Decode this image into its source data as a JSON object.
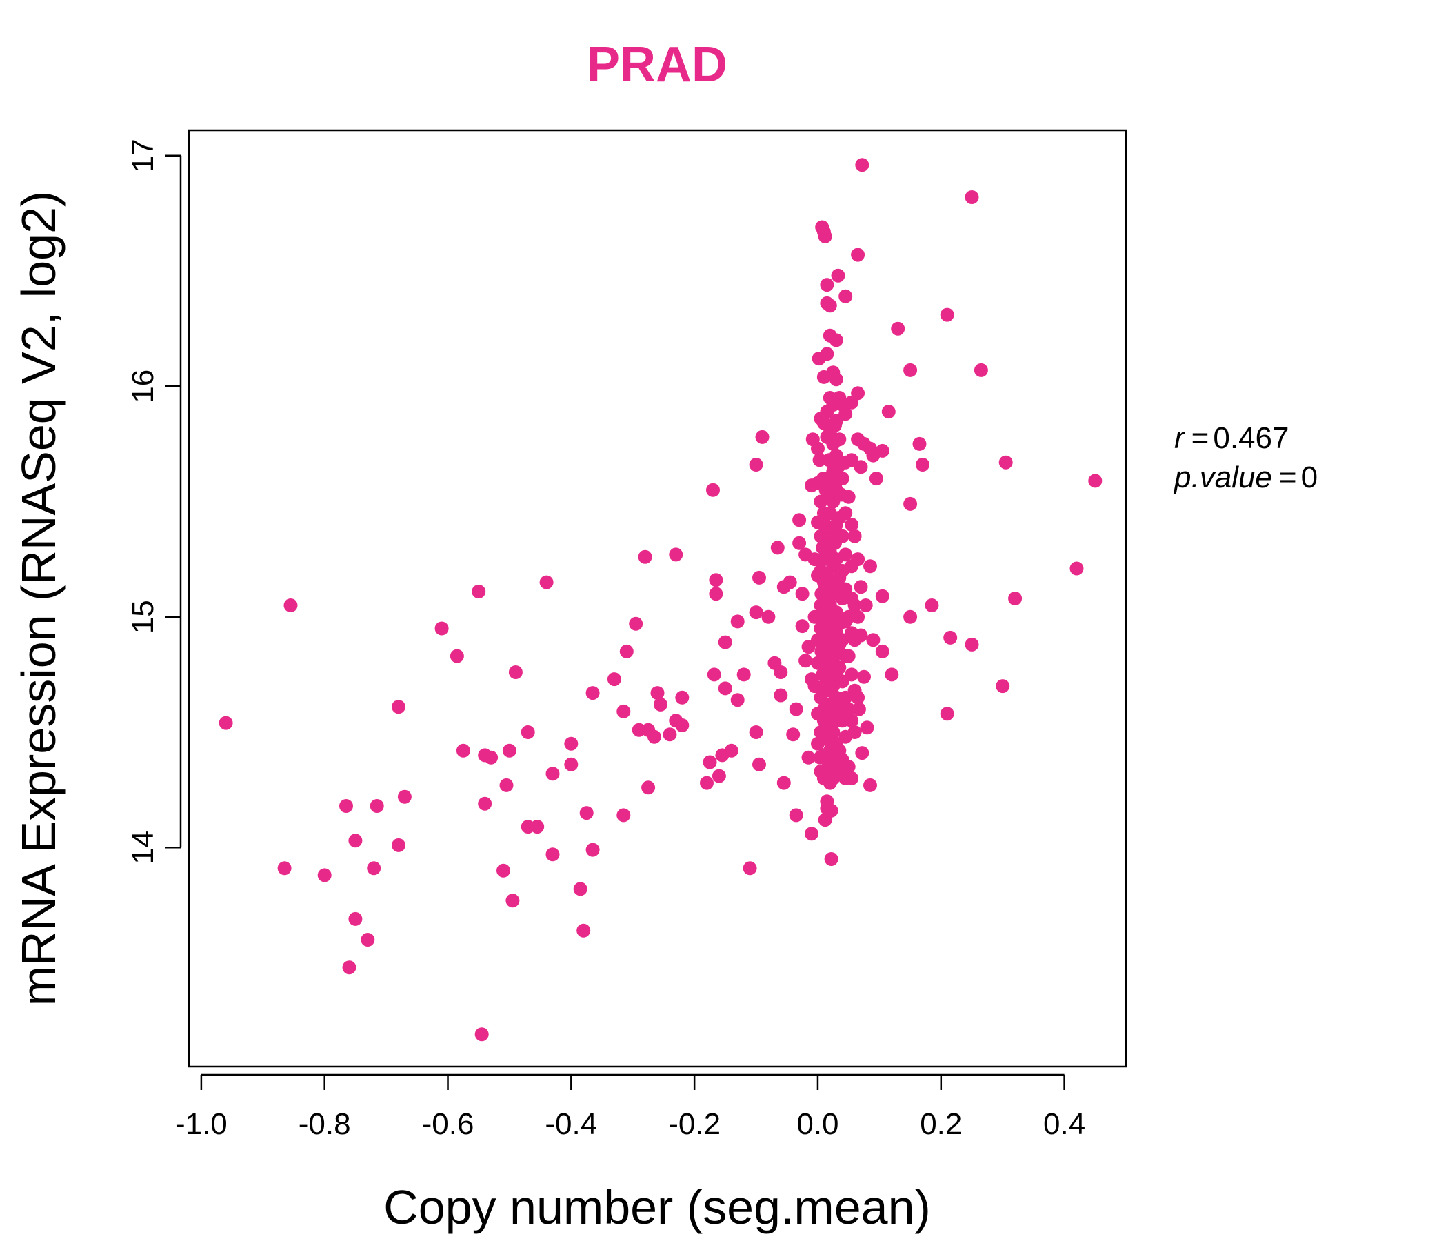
{
  "chart_data": {
    "type": "scatter",
    "title": "PRAD",
    "xlabel": "Copy number (seg.mean)",
    "ylabel": "mRNA Expression (RNASeq V2, log2)",
    "xlim": [
      -1.02,
      0.5
    ],
    "ylim": [
      13.05,
      17.11
    ],
    "x_ticks": [
      -1.0,
      -0.8,
      -0.6,
      -0.4,
      -0.2,
      0.0,
      0.2,
      0.4
    ],
    "x_tick_labels": [
      "-1.0",
      "-0.8",
      "-0.6",
      "-0.4",
      "-0.2",
      "0.0",
      "0.2",
      "0.4"
    ],
    "y_ticks": [
      14,
      15,
      16,
      17
    ],
    "y_tick_labels": [
      "14",
      "15",
      "16",
      "17"
    ],
    "grid": false,
    "legend": "none",
    "color": "#E7298A",
    "stats": {
      "r_label": "r",
      "r_value": "0.467",
      "p_label": "p.value",
      "p_value": "0"
    },
    "points": [
      [
        -0.96,
        14.54
      ],
      [
        -0.865,
        13.91
      ],
      [
        -0.855,
        15.05
      ],
      [
        -0.8,
        13.88
      ],
      [
        -0.765,
        14.18
      ],
      [
        -0.76,
        13.48
      ],
      [
        -0.75,
        14.03
      ],
      [
        -0.75,
        13.69
      ],
      [
        -0.73,
        13.6
      ],
      [
        -0.72,
        13.91
      ],
      [
        -0.715,
        14.18
      ],
      [
        -0.68,
        14.61
      ],
      [
        -0.68,
        14.01
      ],
      [
        -0.67,
        14.22
      ],
      [
        -0.61,
        14.95
      ],
      [
        -0.585,
        14.83
      ],
      [
        -0.575,
        14.42
      ],
      [
        -0.55,
        15.11
      ],
      [
        -0.545,
        13.19
      ],
      [
        -0.54,
        14.4
      ],
      [
        -0.54,
        14.19
      ],
      [
        -0.53,
        14.39
      ],
      [
        -0.51,
        13.9
      ],
      [
        -0.505,
        14.27
      ],
      [
        -0.5,
        14.42
      ],
      [
        -0.495,
        13.77
      ],
      [
        -0.49,
        14.76
      ],
      [
        -0.47,
        14.5
      ],
      [
        -0.47,
        14.09
      ],
      [
        -0.455,
        14.09
      ],
      [
        -0.44,
        15.15
      ],
      [
        -0.43,
        14.32
      ],
      [
        -0.43,
        13.97
      ],
      [
        -0.4,
        14.45
      ],
      [
        -0.4,
        14.36
      ],
      [
        -0.385,
        13.82
      ],
      [
        -0.38,
        13.64
      ],
      [
        -0.375,
        14.15
      ],
      [
        -0.365,
        14.67
      ],
      [
        -0.365,
        13.99
      ],
      [
        -0.33,
        14.73
      ],
      [
        -0.315,
        14.59
      ],
      [
        -0.315,
        14.14
      ],
      [
        -0.31,
        14.85
      ],
      [
        -0.295,
        14.97
      ],
      [
        -0.29,
        14.51
      ],
      [
        -0.28,
        15.26
      ],
      [
        -0.275,
        14.26
      ],
      [
        -0.275,
        14.51
      ],
      [
        -0.265,
        14.48
      ],
      [
        -0.26,
        14.67
      ],
      [
        -0.255,
        14.62
      ],
      [
        -0.24,
        14.49
      ],
      [
        -0.23,
        15.27
      ],
      [
        -0.23,
        14.55
      ],
      [
        -0.22,
        14.65
      ],
      [
        -0.22,
        14.53
      ],
      [
        -0.18,
        14.28
      ],
      [
        -0.175,
        14.37
      ],
      [
        -0.17,
        15.55
      ],
      [
        -0.168,
        14.75
      ],
      [
        -0.165,
        15.16
      ],
      [
        -0.165,
        15.1
      ],
      [
        -0.16,
        14.31
      ],
      [
        -0.155,
        14.4
      ],
      [
        -0.15,
        14.89
      ],
      [
        -0.15,
        14.69
      ],
      [
        -0.14,
        14.42
      ],
      [
        -0.13,
        14.64
      ],
      [
        -0.13,
        14.98
      ],
      [
        -0.12,
        14.75
      ],
      [
        -0.11,
        13.91
      ],
      [
        -0.1,
        14.5
      ],
      [
        -0.1,
        15.02
      ],
      [
        -0.1,
        15.66
      ],
      [
        -0.095,
        15.17
      ],
      [
        -0.095,
        14.36
      ],
      [
        -0.09,
        15.78
      ],
      [
        -0.08,
        15.0
      ],
      [
        -0.07,
        14.8
      ],
      [
        -0.065,
        15.3
      ],
      [
        -0.06,
        14.76
      ],
      [
        -0.06,
        14.66
      ],
      [
        -0.055,
        15.13
      ],
      [
        -0.055,
        14.28
      ],
      [
        -0.045,
        15.15
      ],
      [
        -0.04,
        14.49
      ],
      [
        -0.035,
        14.14
      ],
      [
        -0.035,
        14.6
      ],
      [
        -0.03,
        15.42
      ],
      [
        -0.03,
        15.32
      ],
      [
        -0.025,
        15.1
      ],
      [
        -0.025,
        14.96
      ],
      [
        -0.02,
        14.81
      ],
      [
        -0.02,
        15.27
      ],
      [
        -0.015,
        14.39
      ],
      [
        -0.015,
        14.87
      ],
      [
        -0.01,
        15.57
      ],
      [
        -0.01,
        14.73
      ],
      [
        -0.01,
        14.06
      ],
      [
        -0.008,
        15.77
      ],
      [
        -0.005,
        15.25
      ],
      [
        -0.005,
        15.0
      ],
      [
        -0.005,
        14.7
      ],
      [
        0.0,
        15.58
      ],
      [
        0.0,
        15.41
      ],
      [
        0.0,
        15.18
      ],
      [
        0.0,
        15.0
      ],
      [
        0.0,
        14.9
      ],
      [
        0.0,
        14.8
      ],
      [
        0.0,
        14.58
      ],
      [
        0.0,
        14.45
      ],
      [
        0.0,
        15.73
      ],
      [
        0.002,
        16.12
      ],
      [
        0.003,
        15.68
      ],
      [
        0.004,
        14.39
      ],
      [
        0.005,
        15.86
      ],
      [
        0.005,
        15.5
      ],
      [
        0.005,
        15.35
      ],
      [
        0.005,
        15.2
      ],
      [
        0.005,
        15.05
      ],
      [
        0.005,
        14.95
      ],
      [
        0.005,
        14.65
      ],
      [
        0.005,
        14.5
      ],
      [
        0.005,
        14.33
      ],
      [
        0.006,
        14.85
      ],
      [
        0.006,
        15.1
      ],
      [
        0.007,
        16.69
      ],
      [
        0.008,
        15.3
      ],
      [
        0.008,
        14.75
      ],
      [
        0.009,
        15.6
      ],
      [
        0.01,
        16.67
      ],
      [
        0.01,
        16.04
      ],
      [
        0.01,
        15.84
      ],
      [
        0.01,
        15.45
      ],
      [
        0.01,
        15.25
      ],
      [
        0.01,
        15.15
      ],
      [
        0.01,
        15.0
      ],
      [
        0.01,
        14.9
      ],
      [
        0.01,
        14.8
      ],
      [
        0.01,
        14.7
      ],
      [
        0.01,
        14.6
      ],
      [
        0.01,
        14.55
      ],
      [
        0.01,
        14.4
      ],
      [
        0.01,
        14.3
      ],
      [
        0.012,
        16.65
      ],
      [
        0.012,
        14.12
      ],
      [
        0.012,
        15.4
      ],
      [
        0.013,
        15.55
      ],
      [
        0.014,
        15.12
      ],
      [
        0.015,
        16.36
      ],
      [
        0.015,
        16.44
      ],
      [
        0.015,
        16.14
      ],
      [
        0.015,
        15.89
      ],
      [
        0.015,
        15.78
      ],
      [
        0.015,
        15.52
      ],
      [
        0.015,
        15.32
      ],
      [
        0.015,
        15.18
      ],
      [
        0.015,
        15.02
      ],
      [
        0.015,
        14.92
      ],
      [
        0.015,
        14.82
      ],
      [
        0.015,
        14.72
      ],
      [
        0.015,
        14.62
      ],
      [
        0.015,
        14.47
      ],
      [
        0.015,
        14.38
      ],
      [
        0.015,
        14.2
      ],
      [
        0.015,
        14.17
      ],
      [
        0.018,
        15.68
      ],
      [
        0.018,
        15.08
      ],
      [
        0.018,
        14.98
      ],
      [
        0.02,
        16.35
      ],
      [
        0.02,
        16.22
      ],
      [
        0.02,
        15.95
      ],
      [
        0.02,
        15.8
      ],
      [
        0.02,
        15.6
      ],
      [
        0.02,
        15.45
      ],
      [
        0.02,
        15.28
      ],
      [
        0.02,
        15.15
      ],
      [
        0.02,
        15.05
      ],
      [
        0.02,
        14.95
      ],
      [
        0.02,
        14.85
      ],
      [
        0.02,
        14.77
      ],
      [
        0.02,
        14.68
      ],
      [
        0.02,
        14.57
      ],
      [
        0.02,
        14.52
      ],
      [
        0.02,
        14.42
      ],
      [
        0.02,
        14.34
      ],
      [
        0.02,
        14.28
      ],
      [
        0.022,
        13.95
      ],
      [
        0.022,
        14.16
      ],
      [
        0.025,
        16.06
      ],
      [
        0.025,
        15.92
      ],
      [
        0.025,
        15.75
      ],
      [
        0.025,
        15.63
      ],
      [
        0.025,
        15.5
      ],
      [
        0.025,
        15.37
      ],
      [
        0.025,
        15.22
      ],
      [
        0.025,
        15.1
      ],
      [
        0.025,
        15.0
      ],
      [
        0.025,
        14.9
      ],
      [
        0.025,
        14.8
      ],
      [
        0.025,
        14.7
      ],
      [
        0.025,
        14.62
      ],
      [
        0.025,
        14.5
      ],
      [
        0.025,
        14.4
      ],
      [
        0.025,
        14.3
      ],
      [
        0.028,
        15.83
      ],
      [
        0.028,
        15.57
      ],
      [
        0.028,
        15.32
      ],
      [
        0.03,
        16.2
      ],
      [
        0.03,
        16.03
      ],
      [
        0.03,
        15.85
      ],
      [
        0.03,
        15.7
      ],
      [
        0.03,
        15.55
      ],
      [
        0.03,
        15.4
      ],
      [
        0.03,
        15.25
      ],
      [
        0.03,
        15.13
      ],
      [
        0.03,
        15.02
      ],
      [
        0.03,
        14.93
      ],
      [
        0.03,
        14.84
      ],
      [
        0.03,
        14.75
      ],
      [
        0.03,
        14.65
      ],
      [
        0.03,
        14.55
      ],
      [
        0.03,
        14.45
      ],
      [
        0.03,
        14.35
      ],
      [
        0.033,
        16.48
      ],
      [
        0.033,
        15.65
      ],
      [
        0.035,
        15.95
      ],
      [
        0.035,
        15.77
      ],
      [
        0.035,
        15.43
      ],
      [
        0.035,
        15.17
      ],
      [
        0.035,
        14.97
      ],
      [
        0.035,
        14.88
      ],
      [
        0.035,
        14.78
      ],
      [
        0.035,
        14.6
      ],
      [
        0.035,
        14.42
      ],
      [
        0.035,
        14.32
      ],
      [
        0.038,
        15.53
      ],
      [
        0.04,
        15.92
      ],
      [
        0.04,
        15.6
      ],
      [
        0.04,
        15.35
      ],
      [
        0.04,
        15.2
      ],
      [
        0.04,
        15.08
      ],
      [
        0.04,
        14.9
      ],
      [
        0.04,
        14.72
      ],
      [
        0.04,
        14.55
      ],
      [
        0.04,
        14.38
      ],
      [
        0.045,
        16.39
      ],
      [
        0.045,
        15.88
      ],
      [
        0.045,
        15.67
      ],
      [
        0.045,
        15.45
      ],
      [
        0.045,
        15.27
      ],
      [
        0.045,
        15.12
      ],
      [
        0.045,
        14.98
      ],
      [
        0.045,
        14.83
      ],
      [
        0.045,
        14.65
      ],
      [
        0.045,
        14.48
      ],
      [
        0.045,
        14.3
      ],
      [
        0.05,
        15.52
      ],
      [
        0.05,
        15.0
      ],
      [
        0.05,
        14.83
      ],
      [
        0.05,
        14.6
      ],
      [
        0.05,
        14.35
      ],
      [
        0.055,
        15.93
      ],
      [
        0.055,
        15.68
      ],
      [
        0.055,
        15.4
      ],
      [
        0.055,
        15.22
      ],
      [
        0.055,
        15.08
      ],
      [
        0.055,
        14.93
      ],
      [
        0.055,
        14.75
      ],
      [
        0.055,
        14.55
      ],
      [
        0.055,
        14.3
      ],
      [
        0.06,
        15.35
      ],
      [
        0.06,
        15.05
      ],
      [
        0.06,
        14.9
      ],
      [
        0.06,
        14.68
      ],
      [
        0.06,
        14.5
      ],
      [
        0.065,
        16.57
      ],
      [
        0.065,
        15.97
      ],
      [
        0.065,
        15.77
      ],
      [
        0.065,
        15.25
      ],
      [
        0.065,
        15.0
      ],
      [
        0.065,
        14.65
      ],
      [
        0.067,
        14.6
      ],
      [
        0.07,
        15.65
      ],
      [
        0.07,
        15.13
      ],
      [
        0.07,
        14.92
      ],
      [
        0.072,
        16.96
      ],
      [
        0.072,
        14.41
      ],
      [
        0.075,
        15.75
      ],
      [
        0.075,
        14.74
      ],
      [
        0.078,
        15.05
      ],
      [
        0.08,
        14.52
      ],
      [
        0.085,
        14.27
      ],
      [
        0.085,
        15.22
      ],
      [
        0.085,
        15.73
      ],
      [
        0.09,
        14.9
      ],
      [
        0.09,
        15.7
      ],
      [
        0.095,
        15.6
      ],
      [
        0.105,
        15.09
      ],
      [
        0.105,
        14.85
      ],
      [
        0.105,
        15.72
      ],
      [
        0.115,
        15.89
      ],
      [
        0.12,
        14.75
      ],
      [
        0.13,
        16.25
      ],
      [
        0.15,
        16.07
      ],
      [
        0.15,
        15.49
      ],
      [
        0.15,
        15.0
      ],
      [
        0.165,
        15.75
      ],
      [
        0.17,
        15.66
      ],
      [
        0.185,
        15.05
      ],
      [
        0.21,
        16.31
      ],
      [
        0.21,
        14.58
      ],
      [
        0.215,
        14.91
      ],
      [
        0.25,
        16.82
      ],
      [
        0.25,
        14.88
      ],
      [
        0.265,
        16.07
      ],
      [
        0.3,
        14.7
      ],
      [
        0.305,
        15.67
      ],
      [
        0.32,
        15.08
      ],
      [
        0.42,
        15.21
      ],
      [
        0.45,
        15.59
      ]
    ]
  }
}
